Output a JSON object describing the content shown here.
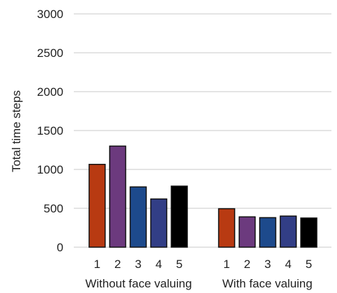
{
  "chart_data": {
    "type": "bar",
    "title": "",
    "xlabel": "",
    "ylabel": "Total time steps",
    "ylim": [
      0,
      3000
    ],
    "yticks": [
      0,
      500,
      1000,
      1500,
      2000,
      2500,
      3000
    ],
    "grid": true,
    "legend": "none",
    "groups": [
      {
        "label": "Without face valuing",
        "categories": [
          "1",
          "2",
          "3",
          "4",
          "5"
        ],
        "values": [
          1065,
          1300,
          775,
          620,
          785
        ]
      },
      {
        "label": "With face valuing",
        "categories": [
          "1",
          "2",
          "3",
          "4",
          "5"
        ],
        "values": [
          495,
          390,
          380,
          400,
          375
        ]
      }
    ],
    "bar_colors": [
      "#b83a12",
      "#6c3a7e",
      "#1d4a8c",
      "#323e86",
      "#000000"
    ]
  }
}
